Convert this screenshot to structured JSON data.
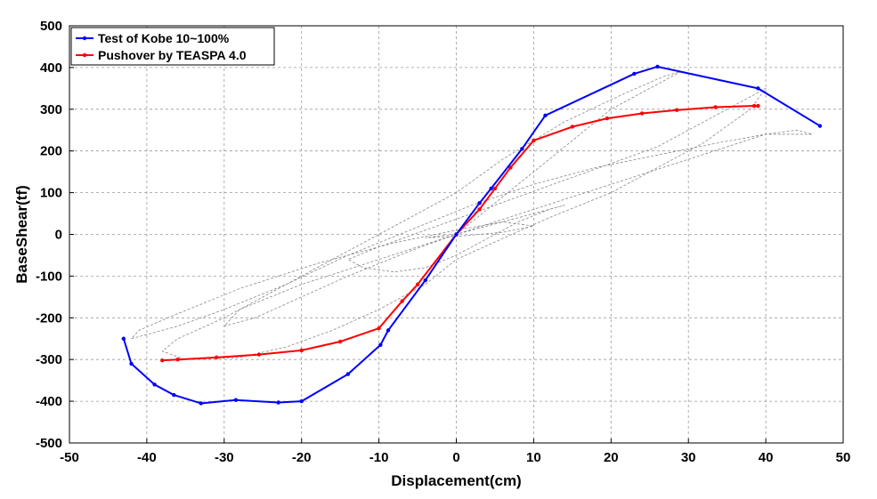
{
  "chart_data": {
    "type": "line",
    "xlabel": "Displacement(cm)",
    "ylabel": "BaseShear(tf)",
    "xlim": [
      -50,
      50
    ],
    "ylim": [
      -500,
      500
    ],
    "xticks": [
      -50,
      -40,
      -30,
      -20,
      -10,
      0,
      10,
      20,
      30,
      40,
      50
    ],
    "yticks": [
      -500,
      -400,
      -300,
      -200,
      -100,
      0,
      100,
      200,
      300,
      400,
      500
    ],
    "grid": true,
    "legend_position": "top-left",
    "series": [
      {
        "name": "Test of Kobe 10~100%",
        "color": "#0000ff",
        "x": [
          -43,
          -42,
          -39,
          -36.5,
          -33,
          -28.5,
          -23,
          -20,
          -14,
          -9.8,
          -8.8,
          -4,
          0,
          3,
          4.5,
          8.5,
          11.5,
          23,
          26,
          39,
          47
        ],
        "y": [
          -250,
          -310,
          -360,
          -385,
          -405,
          -397,
          -403,
          -400,
          -335,
          -265,
          -230,
          -110,
          0,
          75,
          110,
          205,
          285,
          385,
          402,
          350,
          260
        ]
      },
      {
        "name": "Pushover by TEASPA 4.0",
        "color": "#ff0000",
        "x": [
          -38,
          -36,
          -31,
          -25.5,
          -20,
          -15,
          -10,
          -7,
          -5,
          0,
          3,
          5,
          7,
          10,
          15,
          19.5,
          24,
          28.5,
          33.5,
          38.5,
          39
        ],
        "y": [
          -302,
          -300,
          -295,
          -288,
          -278,
          -257,
          -225,
          -160,
          -120,
          0,
          60,
          110,
          160,
          225,
          258,
          278,
          290,
          298,
          305,
          308,
          308
        ]
      },
      {
        "name": "",
        "color": "#888888",
        "style": "dashed",
        "x": [
          0,
          4,
          10,
          16,
          20,
          25,
          28,
          29,
          27,
          22,
          14,
          6,
          0,
          -8,
          -16,
          -24,
          -30,
          -36,
          -38,
          -35,
          -28,
          -22,
          -16,
          -10,
          -4,
          0,
          6,
          12,
          20,
          26,
          32,
          38,
          40,
          38,
          34,
          30,
          26,
          20,
          14,
          8,
          2,
          -4,
          -10,
          -14,
          -12,
          -8,
          -4,
          0,
          4,
          8,
          12,
          14,
          12,
          6,
          0,
          -6,
          -14,
          -20,
          -26,
          -30,
          -28,
          -20,
          -10,
          0,
          10,
          20,
          30,
          40,
          45,
          46,
          44,
          40,
          34,
          26,
          18,
          10,
          2,
          -6,
          -14,
          -22,
          -30,
          -36,
          -40,
          -42,
          -41,
          -36,
          -28,
          -18,
          -8,
          0,
          6,
          10,
          6,
          0,
          -4,
          -2,
          0
        ],
        "y": [
          0,
          60,
          150,
          240,
          300,
          350,
          380,
          390,
          380,
          340,
          270,
          180,
          100,
          20,
          -60,
          -140,
          -200,
          -250,
          -280,
          -300,
          -295,
          -270,
          -230,
          -180,
          -120,
          -60,
          -10,
          40,
          100,
          160,
          220,
          300,
          350,
          330,
          290,
          250,
          210,
          170,
          130,
          90,
          50,
          10,
          -30,
          -60,
          -80,
          -90,
          -80,
          -50,
          -10,
          30,
          60,
          70,
          60,
          30,
          0,
          -40,
          -100,
          -150,
          -200,
          -220,
          -180,
          -120,
          -60,
          0,
          60,
          120,
          180,
          240,
          240,
          240,
          250,
          240,
          220,
          190,
          160,
          120,
          70,
          10,
          -50,
          -120,
          -180,
          -220,
          -240,
          -250,
          -230,
          -190,
          -130,
          -70,
          -20,
          10,
          30,
          20,
          5,
          -5,
          -8,
          -3,
          0
        ]
      }
    ]
  }
}
